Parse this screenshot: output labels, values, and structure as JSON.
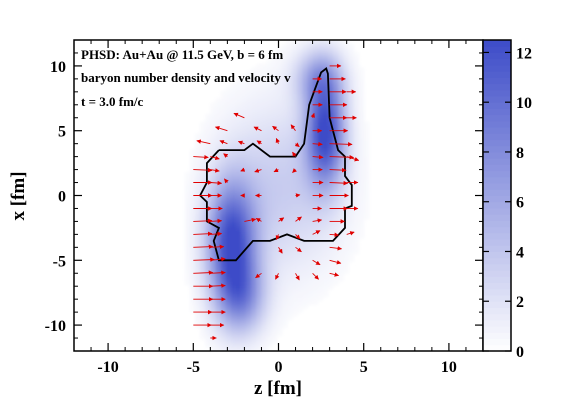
{
  "chart_data": {
    "type": "heatmap",
    "title": "",
    "xlabel": "z  [fm]",
    "ylabel": "x  [fm]",
    "xlim": [
      -12,
      12
    ],
    "ylim": [
      -12,
      12
    ],
    "xticks": [
      -10,
      -5,
      0,
      5,
      10
    ],
    "yticks": [
      -10,
      -5,
      0,
      5,
      10
    ],
    "annotations": [
      "PHSD:  Au+Au @ 11.5 GeV,  b = 6 fm",
      "baryon number density and velocity  v",
      "t = 3.0 fm/c"
    ],
    "colorbar": {
      "min": 0,
      "max": 12.5,
      "ticks": [
        0,
        2,
        4,
        6,
        8,
        10,
        12
      ],
      "colors": {
        "low": "#ffffff",
        "high": "#3d4cc8"
      }
    },
    "density_blobs": [
      {
        "z": -2.9,
        "x": -3.8,
        "sz": 1.0,
        "sx": 3.3,
        "peak": 12
      },
      {
        "z": 2.6,
        "x": 4.8,
        "sz": 0.8,
        "sx": 2.9,
        "peak": 12
      },
      {
        "z": 0.0,
        "x": 0.5,
        "sz": 2.4,
        "sx": 4.5,
        "peak": 3.5
      },
      {
        "z": -2.3,
        "x": -8.0,
        "sz": 1.0,
        "sx": 2.0,
        "peak": 6
      },
      {
        "z": 2.2,
        "x": 9.0,
        "sz": 1.0,
        "sx": 1.5,
        "peak": 5
      }
    ],
    "contour": [
      [
        -3.5,
        3.5
      ],
      [
        -2,
        3.5
      ],
      [
        -1.5,
        4.0
      ],
      [
        -0.5,
        3.0
      ],
      [
        1.0,
        3.0
      ],
      [
        1.5,
        4.0
      ],
      [
        1.8,
        7.0
      ],
      [
        2.5,
        9.5
      ],
      [
        2.8,
        9.8
      ],
      [
        2.9,
        9.4
      ],
      [
        3.0,
        6.0
      ],
      [
        3.5,
        3.5
      ],
      [
        3.9,
        3.0
      ],
      [
        3.9,
        1.5
      ],
      [
        4.3,
        0.8
      ],
      [
        4.3,
        -0.8
      ],
      [
        3.9,
        -1.0
      ],
      [
        3.9,
        -2.5
      ],
      [
        3.2,
        -3.5
      ],
      [
        1.5,
        -3.5
      ],
      [
        0.5,
        -3.0
      ],
      [
        -0.5,
        -3.5
      ],
      [
        -1.5,
        -3.5
      ],
      [
        -2.5,
        -5.0
      ],
      [
        -3.5,
        -5.0
      ],
      [
        -3.8,
        -3.5
      ],
      [
        -3.5,
        -2.5
      ],
      [
        -4.2,
        -2.0
      ],
      [
        -4.2,
        -0.5
      ],
      [
        -4.6,
        0.0
      ],
      [
        -4.2,
        1.0
      ],
      [
        -4.2,
        2.5
      ],
      [
        -3.5,
        3.5
      ]
    ],
    "vectors": [
      {
        "z": -5,
        "x": -10,
        "vz": 2.4,
        "vx": 0
      },
      {
        "z": -5,
        "x": -9,
        "vz": 2.5,
        "vx": 0
      },
      {
        "z": -5,
        "x": -8,
        "vz": 2.6,
        "vx": 0
      },
      {
        "z": -5,
        "x": -7,
        "vz": 2.6,
        "vx": 0
      },
      {
        "z": -5,
        "x": -6,
        "vz": 2.6,
        "vx": 0.1
      },
      {
        "z": -5,
        "x": -5,
        "vz": 2.8,
        "vx": 0.1
      },
      {
        "z": -5,
        "x": -4,
        "vz": 2.6,
        "vx": 0.1
      },
      {
        "z": -5,
        "x": -3,
        "vz": 2.5,
        "vx": 0.1
      },
      {
        "z": -5,
        "x": -2,
        "vz": 2.5,
        "vx": 0.1
      },
      {
        "z": -5,
        "x": -1,
        "vz": 2.5,
        "vx": 0
      },
      {
        "z": -5,
        "x": 0,
        "vz": 2.5,
        "vx": 0
      },
      {
        "z": -5,
        "x": 1,
        "vz": 2.5,
        "vx": 0
      },
      {
        "z": -5,
        "x": 2,
        "vz": 2.5,
        "vx": -0.1
      },
      {
        "z": -5,
        "x": 3,
        "vz": 2.0,
        "vx": -0.1
      },
      {
        "z": -4,
        "x": -11,
        "vz": 0.8,
        "vx": 0
      },
      {
        "z": -4,
        "x": -10,
        "vz": 1.8,
        "vx": 0
      },
      {
        "z": -4,
        "x": -9,
        "vz": 2.0,
        "vx": 0
      },
      {
        "z": -4,
        "x": -8,
        "vz": 2.0,
        "vx": 0
      },
      {
        "z": -4,
        "x": -7,
        "vz": 2.0,
        "vx": 0.1
      },
      {
        "z": -4,
        "x": -6,
        "vz": 2.0,
        "vx": 0.1
      },
      {
        "z": -4,
        "x": -5,
        "vz": 2.0,
        "vx": 0.2
      },
      {
        "z": -4,
        "x": -4,
        "vz": 1.8,
        "vx": 0.1
      },
      {
        "z": -4,
        "x": -3,
        "vz": 1.5,
        "vx": 0.1
      },
      {
        "z": -4,
        "x": -2,
        "vz": 1.5,
        "vx": 0.1
      },
      {
        "z": -4,
        "x": -1,
        "vz": 1.6,
        "vx": 0
      },
      {
        "z": -4,
        "x": 0,
        "vz": 1.5,
        "vx": 0
      },
      {
        "z": -4,
        "x": 1,
        "vz": 1.5,
        "vx": -0.1
      },
      {
        "z": -4,
        "x": 2,
        "vz": 1.2,
        "vx": -0.2
      },
      {
        "z": -4,
        "x": 3,
        "vz": 1.2,
        "vx": -0.3
      },
      {
        "z": -4,
        "x": 4,
        "vz": -1.8,
        "vx": 0.4
      },
      {
        "z": -3,
        "x": 5,
        "vz": -1.6,
        "vx": 0.5
      },
      {
        "z": -2,
        "x": 6,
        "vz": -1.4,
        "vx": 0.6
      },
      {
        "z": -1,
        "x": 5,
        "vz": -1.0,
        "vx": 0.5
      },
      {
        "z": 0,
        "x": 5,
        "vz": -0.8,
        "vx": 0.6
      },
      {
        "z": 1,
        "x": 5,
        "vz": -0.6,
        "vx": 0.8
      },
      {
        "z": -3,
        "x": 4,
        "vz": -1.0,
        "vx": 0.4
      },
      {
        "z": -2,
        "x": 4,
        "vz": -0.8,
        "vx": 0.3
      },
      {
        "z": 2,
        "x": 6,
        "vz": 0.2,
        "vx": 0.6
      },
      {
        "z": 1,
        "x": -6,
        "vz": 0.5,
        "vx": -0.9
      },
      {
        "z": 2,
        "x": -6,
        "vz": 0.8,
        "vx": -0.8
      },
      {
        "z": 2,
        "x": -5,
        "vz": 1.0,
        "vx": -0.6
      },
      {
        "z": 3,
        "x": -5,
        "vz": 1.5,
        "vx": -0.4
      },
      {
        "z": 3,
        "x": -4,
        "vz": 1.6,
        "vx": -0.2
      },
      {
        "z": 3,
        "x": -6,
        "vz": 1.2,
        "vx": -0.3
      },
      {
        "z": 1,
        "x": -4,
        "vz": 0.8,
        "vx": -0.6
      },
      {
        "z": 0,
        "x": -6,
        "vz": -0.4,
        "vx": -0.8
      },
      {
        "z": -1,
        "x": -6,
        "vz": -0.8,
        "vx": -0.6
      },
      {
        "z": 3,
        "x": 10,
        "vz": 1.5,
        "vx": 0
      },
      {
        "z": 3,
        "x": 9,
        "vz": 2.1,
        "vx": 0
      },
      {
        "z": 3,
        "x": 8,
        "vz": 2.2,
        "vx": 0
      },
      {
        "z": 3,
        "x": 7,
        "vz": 2.3,
        "vx": 0
      },
      {
        "z": 3,
        "x": 6,
        "vz": 2.3,
        "vx": 0
      },
      {
        "z": 3,
        "x": 5,
        "vz": 2.4,
        "vx": 0
      },
      {
        "z": 3,
        "x": 4,
        "vz": 3.0,
        "vx": -0.1
      },
      {
        "z": 3,
        "x": 3,
        "vz": 3.2,
        "vx": -0.1
      },
      {
        "z": 3,
        "x": 2,
        "vz": 2.2,
        "vx": -0.1
      },
      {
        "z": 3,
        "x": 1,
        "vz": 2.4,
        "vx": -0.1
      },
      {
        "z": 3,
        "x": 0,
        "vz": 2.5,
        "vx": 0
      },
      {
        "z": 3,
        "x": -1,
        "vz": 2.4,
        "vx": 0
      },
      {
        "z": 3,
        "x": -2,
        "vz": 2.0,
        "vx": 0
      },
      {
        "z": 3,
        "x": -3,
        "vz": 1.2,
        "vx": -0.1
      },
      {
        "z": 2,
        "x": 9,
        "vz": 1.2,
        "vx": 0
      },
      {
        "z": 2,
        "x": 8,
        "vz": 1.3,
        "vx": 0
      },
      {
        "z": 2,
        "x": 7,
        "vz": 1.3,
        "vx": 0
      },
      {
        "z": 2,
        "x": 5,
        "vz": 1.2,
        "vx": 0
      },
      {
        "z": 2,
        "x": 4,
        "vz": 1.3,
        "vx": -0.1
      },
      {
        "z": 2,
        "x": 3,
        "vz": 1.4,
        "vx": -0.1
      },
      {
        "z": 2,
        "x": 2,
        "vz": 1.3,
        "vx": 0
      },
      {
        "z": 2,
        "x": 1,
        "vz": 1.4,
        "vx": 0
      },
      {
        "z": 2,
        "x": 0,
        "vz": 1.4,
        "vx": 0
      },
      {
        "z": 2,
        "x": -1,
        "vz": 1.2,
        "vx": 0
      },
      {
        "z": 2,
        "x": -2,
        "vz": 1.2,
        "vx": 0.2
      },
      {
        "z": 2,
        "x": -3,
        "vz": 1.0,
        "vx": 0.5
      },
      {
        "z": 1,
        "x": 4,
        "vz": 0.5,
        "vx": -0.4
      },
      {
        "z": 1,
        "x": 2,
        "vz": -0.4,
        "vx": -0.4
      },
      {
        "z": 1,
        "x": 0,
        "vz": 0.6,
        "vx": 0.1
      },
      {
        "z": 1,
        "x": -2,
        "vz": 0.8,
        "vx": 0.6
      },
      {
        "z": 0,
        "x": 2,
        "vz": -0.6,
        "vx": -0.3
      },
      {
        "z": 0,
        "x": -2,
        "vz": 0.7,
        "vx": 0.5
      },
      {
        "z": -1,
        "x": 2,
        "vz": -0.9,
        "vx": -0.3
      },
      {
        "z": -1,
        "x": 0,
        "vz": -0.8,
        "vx": 0
      },
      {
        "z": -1,
        "x": -2,
        "vz": -0.7,
        "vx": 0.4
      },
      {
        "z": -2,
        "x": 2,
        "vz": -0.5,
        "vx": -0.2
      },
      {
        "z": -2,
        "x": 0,
        "vz": -0.5,
        "vx": 0
      },
      {
        "z": -2,
        "x": -2,
        "vz": 1.5,
        "vx": 0.3
      },
      {
        "z": -3,
        "x": 1,
        "vz": -0.4,
        "vx": 0.5
      },
      {
        "z": -3,
        "x": 3,
        "vz": -0.5,
        "vx": 0.4
      },
      {
        "z": 4,
        "x": 3,
        "vz": 1.6,
        "vx": -0.5
      },
      {
        "z": 4,
        "x": 1,
        "vz": 1.5,
        "vx": 0
      },
      {
        "z": 4,
        "x": -1,
        "vz": 1.5,
        "vx": 0
      },
      {
        "z": 4,
        "x": -3,
        "vz": 1.0,
        "vx": 0.3
      },
      {
        "z": 4,
        "x": 6,
        "vz": 1.3,
        "vx": 0
      },
      {
        "z": 4,
        "x": 8,
        "vz": 1.2,
        "vx": 0
      },
      {
        "z": 0,
        "x": -4,
        "vz": 0.5,
        "vx": -0.8
      },
      {
        "z": 1,
        "x": -3,
        "vz": 0.6,
        "vx": -0.6
      },
      {
        "z": 0,
        "x": -3,
        "vz": -0.3,
        "vx": -0.7
      },
      {
        "z": 0,
        "x": 4,
        "vz": -0.3,
        "vx": 0.7
      },
      {
        "z": 1,
        "x": 3,
        "vz": -0.4,
        "vx": 0.6
      },
      {
        "z": -1,
        "x": 4,
        "vz": -0.6,
        "vx": 0.4
      }
    ]
  }
}
